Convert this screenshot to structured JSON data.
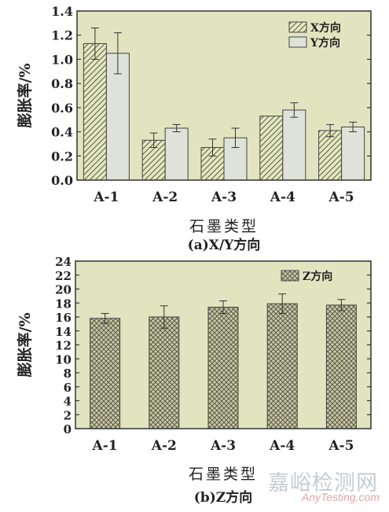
{
  "chart_data": [
    {
      "type": "bar",
      "categories": [
        "A-1",
        "A-2",
        "A-3",
        "A-4",
        "A-5"
      ],
      "series": [
        {
          "name": "X方向",
          "values": [
            1.13,
            0.33,
            0.27,
            0.53,
            0.41
          ],
          "errors": [
            0.13,
            0.06,
            0.07,
            0.0,
            0.05
          ],
          "pattern": "diagonal-hatch",
          "color": "#e4e7c2"
        },
        {
          "name": "Y方向",
          "values": [
            1.05,
            0.43,
            0.35,
            0.58,
            0.44
          ],
          "errors": [
            0.17,
            0.03,
            0.08,
            0.06,
            0.04
          ],
          "pattern": "solid",
          "color": "#dfe2d8"
        }
      ],
      "ylim": [
        0,
        1.4
      ],
      "yticks": [
        "0.0",
        "0.2",
        "0.4",
        "0.6",
        "0.8",
        "1.0",
        "1.2",
        "1.4"
      ],
      "ylabel": "膨胀率/%",
      "xlabel": "石墨类型",
      "caption": "(a)X/Y方向",
      "legend": "top-right",
      "plot_background": "#e2e4c0"
    },
    {
      "type": "bar",
      "categories": [
        "A-1",
        "A-2",
        "A-3",
        "A-4",
        "A-5"
      ],
      "series": [
        {
          "name": "Z方向",
          "values": [
            15.8,
            16.0,
            17.4,
            17.9,
            17.7
          ],
          "errors": [
            0.7,
            1.6,
            0.9,
            1.4,
            0.8
          ],
          "pattern": "cross-hatch",
          "color": "#bfbf9e"
        }
      ],
      "ylim": [
        0,
        24
      ],
      "yticks": [
        "0",
        "2",
        "4",
        "6",
        "8",
        "10",
        "12",
        "14",
        "16",
        "18",
        "20",
        "22",
        "24"
      ],
      "ylabel": "膨胀率/%",
      "xlabel": "石墨类型",
      "caption": "(b)Z方向",
      "legend": "top-right",
      "plot_background": "#e2e4c0"
    }
  ],
  "watermark": {
    "cn": "嘉峪检测网",
    "en": "AnyTesting.com"
  }
}
